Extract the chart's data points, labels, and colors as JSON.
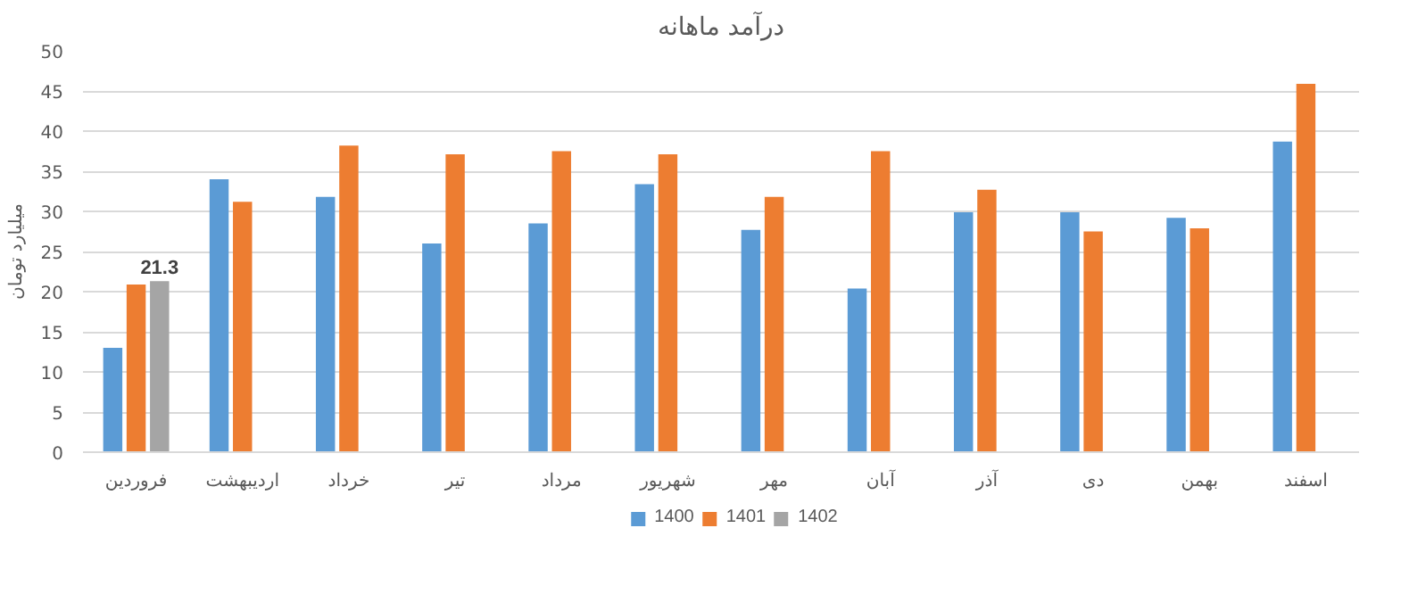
{
  "chart_data": {
    "type": "bar",
    "title": "درآمد ماهانه",
    "ylabel": "میلیارد تومان",
    "categories": [
      "فروردین",
      "اردیبهشت",
      "خرداد",
      "تیر",
      "مرداد",
      "شهریور",
      "مهر",
      "آبان",
      "آذر",
      "دی",
      "بهمن",
      "اسفند"
    ],
    "series": [
      {
        "name": "1400",
        "color": "#5b9bd5",
        "values": [
          13,
          34,
          31.8,
          26,
          28.5,
          33.4,
          27.7,
          20.4,
          29.9,
          29.9,
          29.2,
          38.7
        ]
      },
      {
        "name": "1401",
        "color": "#ed7d31",
        "values": [
          20.9,
          31.2,
          38.2,
          37.1,
          37.5,
          37.1,
          31.8,
          37.5,
          32.7,
          27.5,
          27.9,
          45.9
        ]
      },
      {
        "name": "1402",
        "color": "#a5a5a5",
        "values": [
          21.3,
          null,
          null,
          null,
          null,
          null,
          null,
          null,
          null,
          null,
          null,
          null
        ],
        "value_labels": [
          "21.3",
          null,
          null,
          null,
          null,
          null,
          null,
          null,
          null,
          null,
          null,
          null
        ]
      }
    ],
    "ylim": [
      0,
      50
    ],
    "yticks": [
      0,
      5,
      10,
      15,
      20,
      25,
      30,
      35,
      40,
      45,
      50
    ],
    "grid": "y",
    "legend": "bottom"
  }
}
